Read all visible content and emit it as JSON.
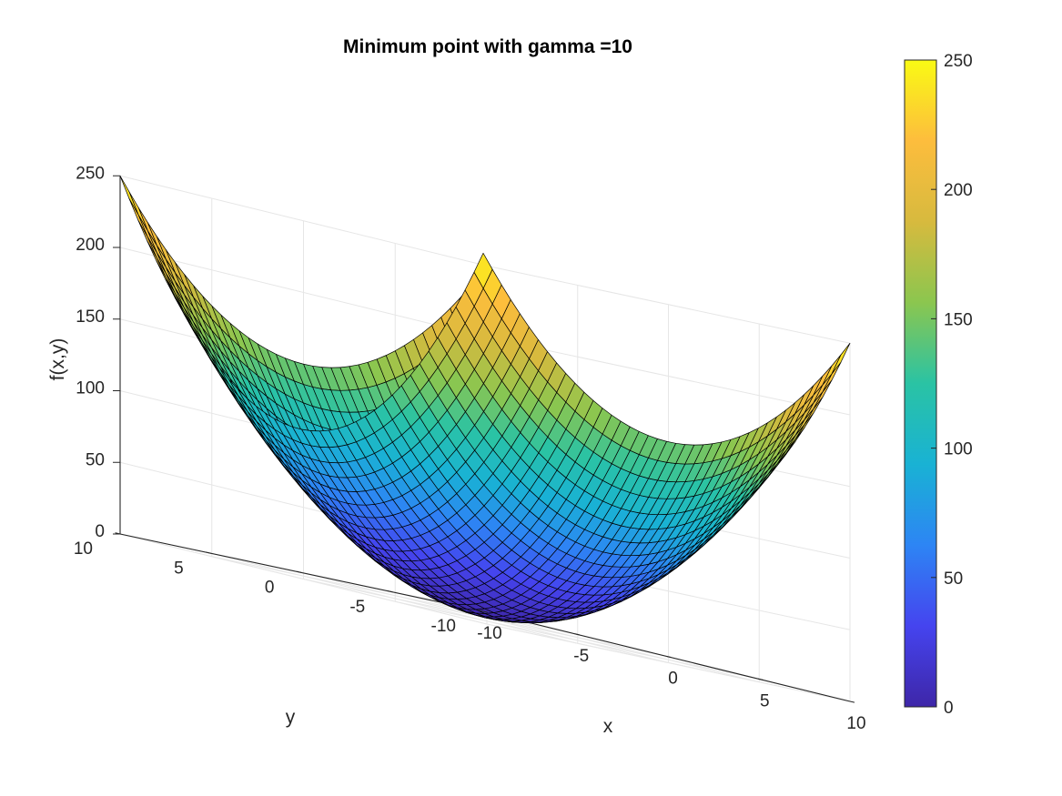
{
  "chart_data": {
    "type": "surface",
    "title": "Minimum point with gamma =10",
    "xlabel": "x",
    "ylabel": "y",
    "zlabel": "f(x,y)",
    "function": "f(x,y) = x^2 + 1.5*y^2",
    "xlim": [
      -10,
      10
    ],
    "ylim": [
      -10,
      10
    ],
    "zlim": [
      0,
      250
    ],
    "grid_points": 41,
    "x_ticks": [
      -10,
      -5,
      0,
      5,
      10
    ],
    "y_ticks": [
      -10,
      -5,
      0,
      5,
      10
    ],
    "z_ticks": [
      0,
      50,
      100,
      150,
      200,
      250
    ],
    "x_tick_labels": [
      "-10",
      "-5",
      "0",
      "5",
      "10"
    ],
    "y_tick_labels": [
      "-10",
      "-5",
      "0",
      "5",
      "10"
    ],
    "z_tick_labels": [
      "0",
      "50",
      "100",
      "150",
      "200",
      "250"
    ],
    "colorbar": {
      "range": [
        0,
        250
      ],
      "ticks": [
        0,
        50,
        100,
        150,
        200,
        250
      ],
      "tick_labels": [
        "0",
        "50",
        "100",
        "150",
        "200",
        "250"
      ],
      "colormap": "parula",
      "colormap_stops": [
        "#3e26a8",
        "#4544ef",
        "#2d85f4",
        "#19b2d4",
        "#2ac3a4",
        "#8bc64f",
        "#d7ba3e",
        "#fdbd3d",
        "#f9fa14"
      ],
      "placement": "right"
    },
    "grid": true,
    "surface_edge_color": "#000000"
  }
}
